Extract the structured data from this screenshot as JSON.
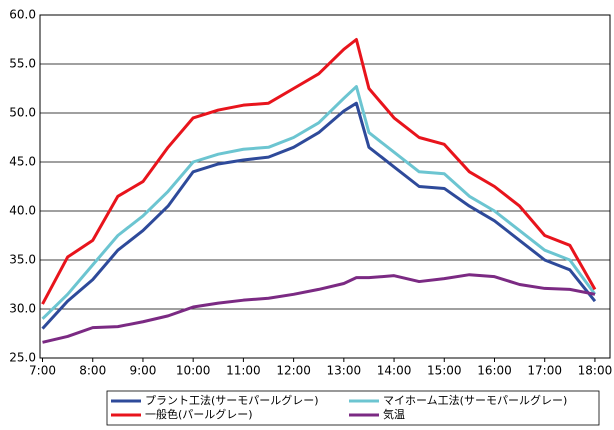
{
  "chart_data": {
    "type": "line",
    "x": [
      7,
      7.5,
      8,
      8.5,
      9,
      9.5,
      10,
      10.5,
      11,
      11.5,
      12,
      12.5,
      13,
      13.25,
      13.5,
      14,
      14.5,
      15,
      15.5,
      16,
      16.5,
      17,
      17.5,
      18
    ],
    "xlim": [
      6.95,
      18.3
    ],
    "xticks": [
      {
        "value": 7,
        "label": "7:00"
      },
      {
        "value": 8,
        "label": "8:00"
      },
      {
        "value": 9,
        "label": "9:00"
      },
      {
        "value": 10,
        "label": "10:00"
      },
      {
        "value": 11,
        "label": "11:00"
      },
      {
        "value": 12,
        "label": "12:00"
      },
      {
        "value": 13,
        "label": "13:00"
      },
      {
        "value": 14,
        "label": "14:00"
      },
      {
        "value": 15,
        "label": "15:00"
      },
      {
        "value": 16,
        "label": "16:00"
      },
      {
        "value": 17,
        "label": "17:00"
      },
      {
        "value": 18,
        "label": "18:00"
      }
    ],
    "ylim": [
      25,
      60
    ],
    "yticks": [
      {
        "value": 25,
        "label": "25.0"
      },
      {
        "value": 30,
        "label": "30.0"
      },
      {
        "value": 35,
        "label": "35.0"
      },
      {
        "value": 40,
        "label": "40.0"
      },
      {
        "value": 45,
        "label": "45.0"
      },
      {
        "value": 50,
        "label": "50.0"
      },
      {
        "value": 55,
        "label": "55.0"
      },
      {
        "value": 60,
        "label": "60.0"
      }
    ],
    "grid": true,
    "series": [
      {
        "name": "プラント工法(サーモパールグレー)",
        "color": "#2e4a9a",
        "values": [
          28,
          30.8,
          33,
          36,
          38,
          40.5,
          44,
          44.8,
          45.2,
          45.5,
          46.5,
          48,
          50.2,
          51,
          46.5,
          44.5,
          42.5,
          42.3,
          40.5,
          39,
          37,
          35,
          34,
          30.8
        ]
      },
      {
        "name": "マイホーム工法(サーモパールグレー)",
        "color": "#6cc5d1",
        "values": [
          29,
          31.5,
          34.5,
          37.5,
          39.5,
          42,
          45,
          45.8,
          46.3,
          46.5,
          47.5,
          49,
          51.5,
          52.7,
          48,
          46,
          44,
          43.8,
          41.5,
          40,
          38,
          36,
          35,
          31.5
        ]
      },
      {
        "name": "一般色(パールグレー)",
        "color": "#e8141c",
        "values": [
          30.5,
          35.3,
          37,
          41.5,
          43,
          46.5,
          49.5,
          50.3,
          50.8,
          51,
          52.5,
          54,
          56.5,
          57.5,
          52.5,
          49.5,
          47.5,
          46.8,
          44,
          42.5,
          40.5,
          37.5,
          36.5,
          32
        ]
      },
      {
        "name": "気温",
        "color": "#7b2a83",
        "values": [
          26.6,
          27.2,
          28.1,
          28.2,
          28.7,
          29.3,
          30.2,
          30.6,
          30.9,
          31.1,
          31.5,
          32,
          32.6,
          33.2,
          33.2,
          33.4,
          32.8,
          33.1,
          33.5,
          33.3,
          32.5,
          32.1,
          32,
          31.5
        ]
      }
    ]
  }
}
